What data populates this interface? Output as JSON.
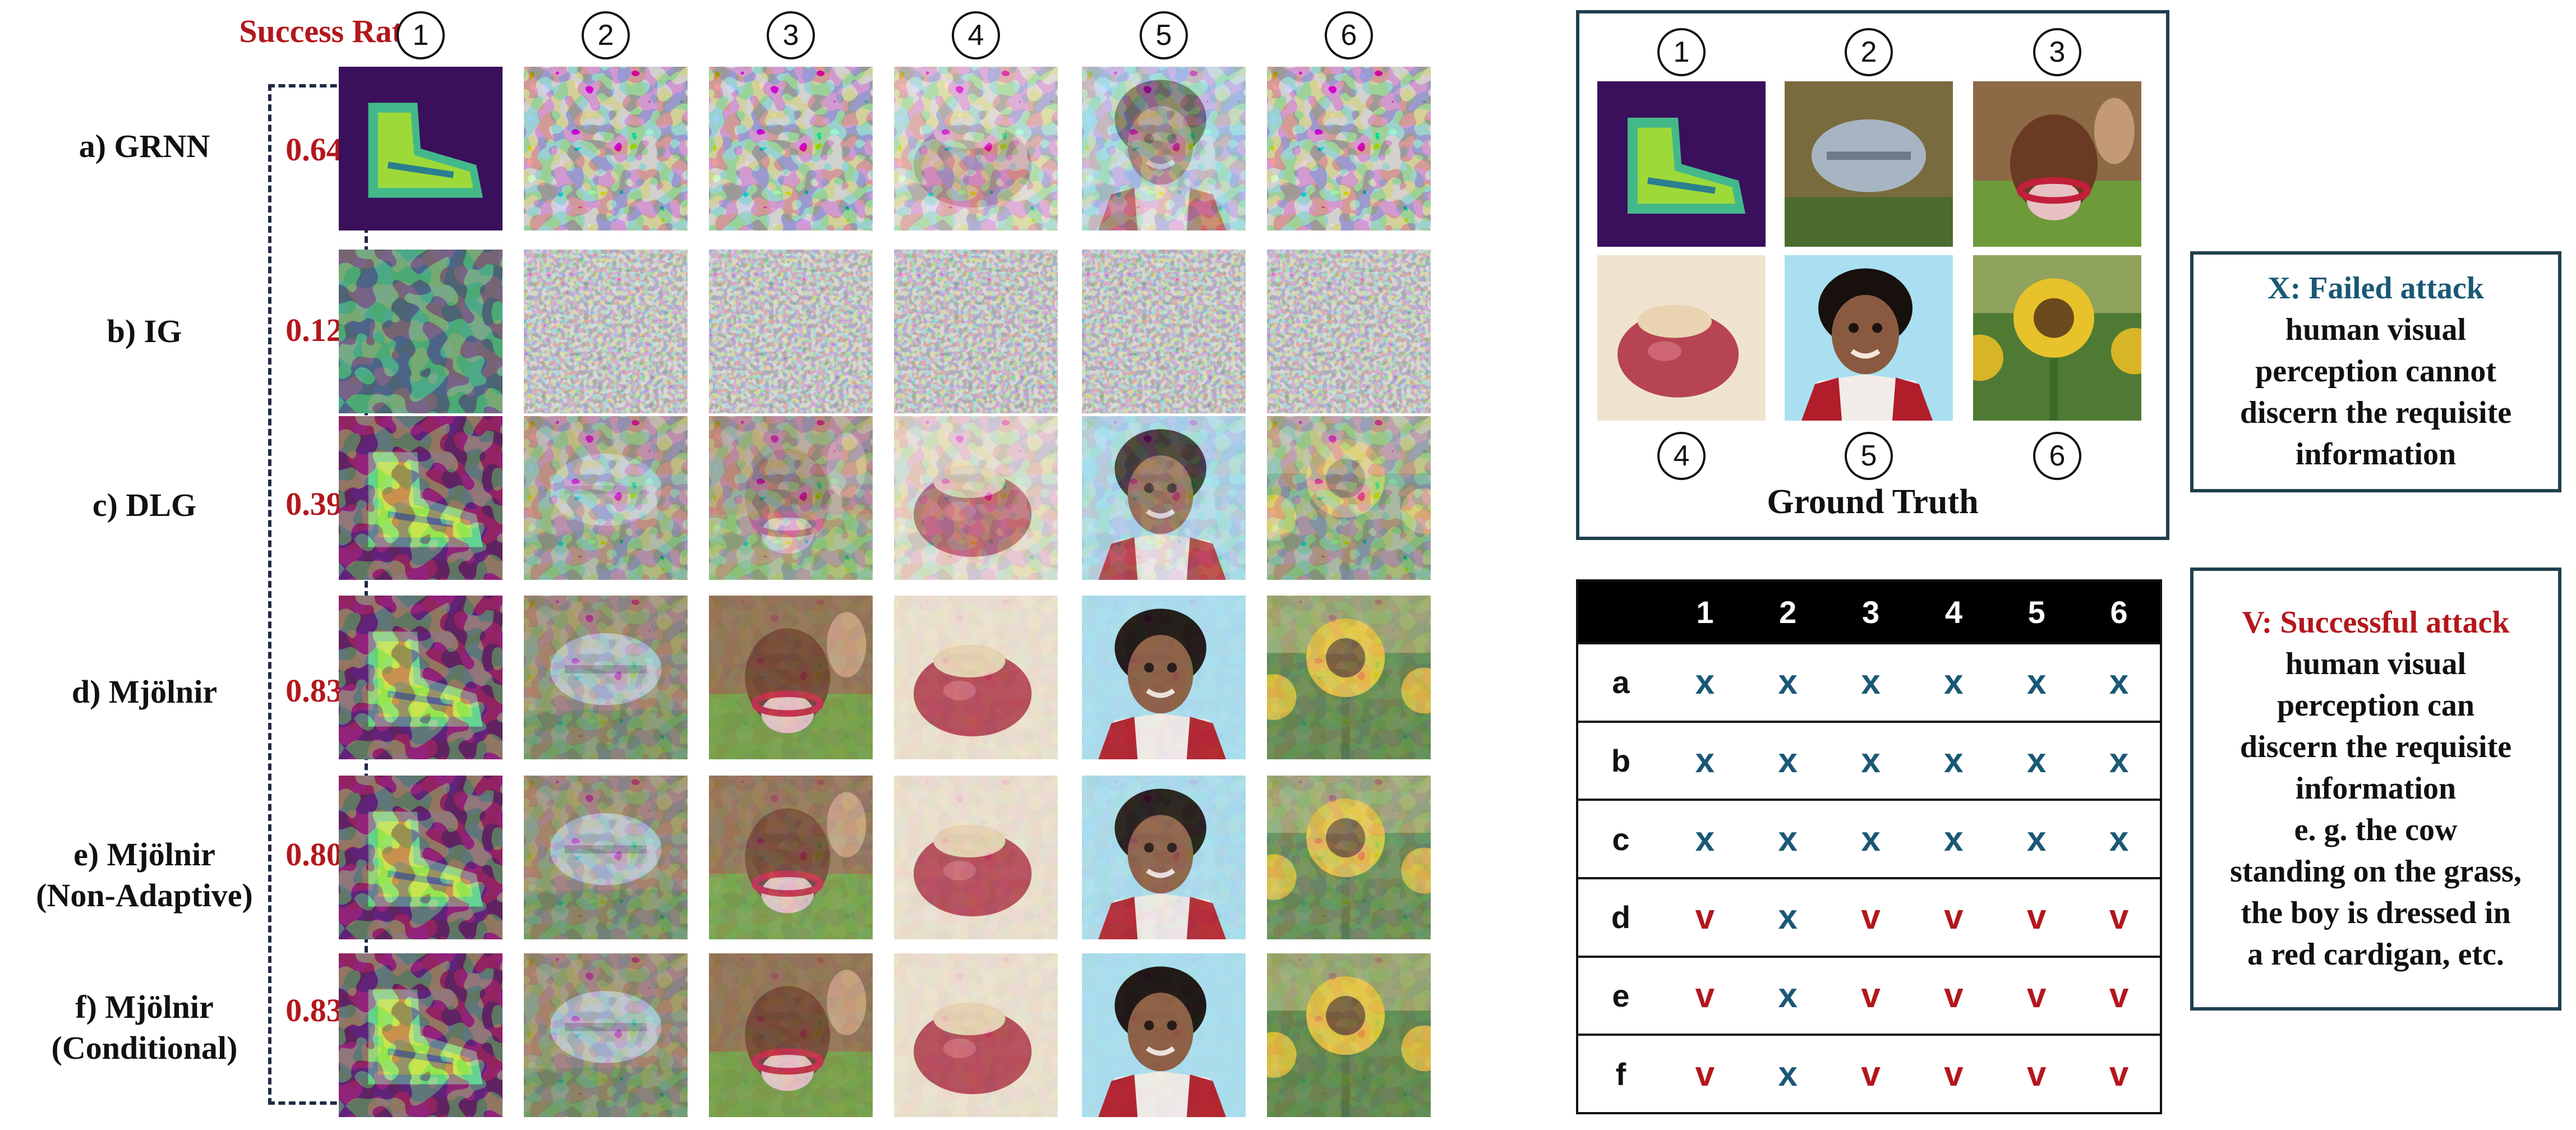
{
  "header": {
    "success_rate_title": "Success Rate"
  },
  "columns": [
    "1",
    "2",
    "3",
    "4",
    "5",
    "6"
  ],
  "methods": [
    {
      "label": "a) GRNN",
      "rate": "0.64"
    },
    {
      "label": "b) IG",
      "rate": "0.12"
    },
    {
      "label": "c) DLG",
      "rate": "0.39"
    },
    {
      "label": "d) Mjölnir",
      "rate": "0.83"
    },
    {
      "label": "e) Mjölnir\n(Non-Adaptive)",
      "rate": "0.80"
    },
    {
      "label": "f) Mjölnir\n(Conditional)",
      "rate": "0.83"
    }
  ],
  "ground_truth": {
    "label": "Ground Truth",
    "numbers": [
      "1",
      "2",
      "3",
      "4",
      "5",
      "6"
    ],
    "images": [
      "boot",
      "fish",
      "cow",
      "apple",
      "boy",
      "sunflower"
    ]
  },
  "legend": {
    "failed": {
      "title": "X: Failed attack",
      "body": "human visual\nperception cannot\ndiscern the requisite\ninformation"
    },
    "success": {
      "title": "V: Successful attack",
      "body": "human visual\nperception can\ndiscern the requisite\ninformation\ne. g. the cow\nstanding on the grass,\nthe boy is dressed in\na red cardigan, etc."
    }
  },
  "result_table": {
    "columns": [
      "1",
      "2",
      "3",
      "4",
      "5",
      "6"
    ],
    "rows": [
      {
        "label": "a",
        "marks": [
          "x",
          "x",
          "x",
          "x",
          "x",
          "x"
        ]
      },
      {
        "label": "b",
        "marks": [
          "x",
          "x",
          "x",
          "x",
          "x",
          "x"
        ]
      },
      {
        "label": "c",
        "marks": [
          "x",
          "x",
          "x",
          "x",
          "x",
          "x"
        ]
      },
      {
        "label": "d",
        "marks": [
          "v",
          "x",
          "v",
          "v",
          "v",
          "v"
        ]
      },
      {
        "label": "e",
        "marks": [
          "v",
          "x",
          "v",
          "v",
          "v",
          "v"
        ]
      },
      {
        "label": "f",
        "marks": [
          "v",
          "x",
          "v",
          "v",
          "v",
          "v"
        ]
      }
    ]
  },
  "colors": {
    "accent_red": "#b3171c",
    "accent_teal": "#1a5876",
    "frame": "#20404f"
  }
}
